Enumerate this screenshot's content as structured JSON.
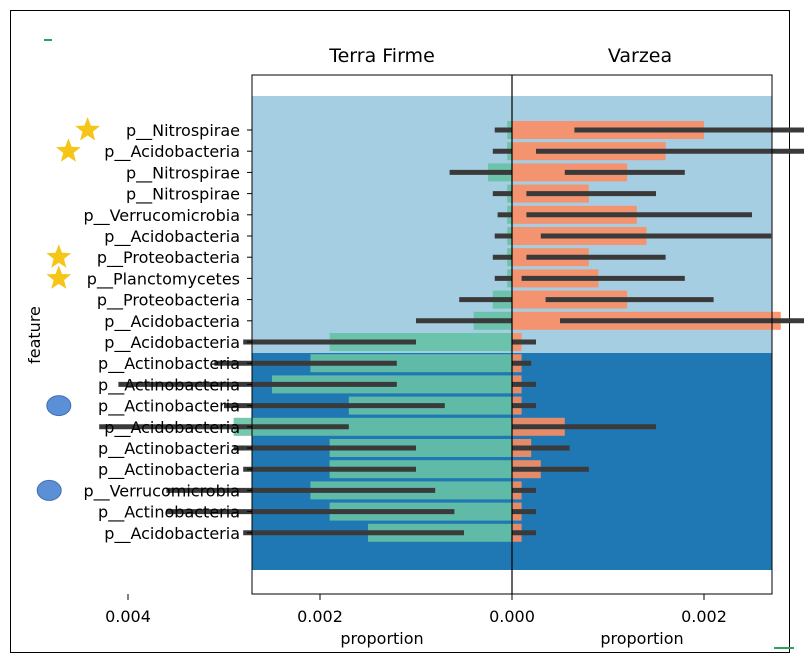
{
  "chart_data": {
    "type": "bar",
    "panels": [
      {
        "title": "Terra Firme",
        "xlabel": "proportion",
        "direction": "left"
      },
      {
        "title": "Varzea",
        "xlabel": "proportion",
        "direction": "right"
      }
    ],
    "ylabel": "feature",
    "xlim": [
      -0.0054,
      0.0054
    ],
    "xticks": [
      {
        "value": -0.004,
        "label": "0.004"
      },
      {
        "value": -0.002,
        "label": "0.002"
      },
      {
        "value": 0.0,
        "label": "0.000"
      },
      {
        "value": 0.002,
        "label": "0.002"
      },
      {
        "value": 0.004,
        "label": "0.004"
      }
    ],
    "categories": [
      "p__Nitrospirae",
      "p__Acidobacteria",
      "p__Nitrospirae",
      "p__Nitrospirae",
      "p__Verrucomicrobia",
      "p__Acidobacteria",
      "p__Proteobacteria",
      "p__Planctomycetes",
      "p__Proteobacteria",
      "p__Acidobacteria",
      "p__Acidobacteria",
      "p__Actinobacteria",
      "p__Actinobacteria",
      "p__Actinobacteria",
      "p__Acidobacteria",
      "p__Actinobacteria",
      "p__Actinobacteria",
      "p__Verrucomicrobia",
      "p__Actinobacteria",
      "p__Acidobacteria"
    ],
    "markers": [
      "star",
      "star",
      "",
      "",
      "",
      "",
      "star",
      "star",
      "",
      "",
      "",
      "",
      "",
      "circle",
      "",
      "",
      "",
      "circle",
      "",
      ""
    ],
    "groups": [
      {
        "first": 0,
        "last": 9,
        "color": "#a6cee3"
      },
      {
        "first": 10,
        "last": 19,
        "color": "#1f78b4"
      }
    ],
    "series": [
      {
        "color": "#66c2a5",
        "values": [
          5e-05,
          5e-05,
          0.00025,
          5e-05,
          5e-05,
          5e-05,
          5e-05,
          5e-05,
          0.0002,
          0.0004,
          0.0019,
          0.0021,
          0.0025,
          0.0017,
          0.0029,
          0.0019,
          0.0019,
          0.0021,
          0.0019,
          0.0015
        ],
        "err_lo": [
          0.0,
          0.0,
          0.0,
          0.0,
          0.0,
          0.0,
          0.0,
          0.0,
          0.0,
          0.0,
          0.001,
          0.0012,
          0.0012,
          0.0007,
          0.0017,
          0.001,
          0.001,
          0.0008,
          0.0006,
          0.0005
        ],
        "err_hi": [
          0.00018,
          0.0002,
          0.00065,
          0.0002,
          0.00015,
          0.00018,
          0.0002,
          0.00018,
          0.00055,
          0.001,
          0.0028,
          0.0031,
          0.0041,
          0.003,
          0.0043,
          0.0029,
          0.0028,
          0.0036,
          0.0036,
          0.0028
        ]
      },
      {
        "color": "#fc8d62",
        "values": [
          0.002,
          0.0016,
          0.0012,
          0.0008,
          0.0013,
          0.0014,
          0.0008,
          0.0009,
          0.0012,
          0.0028,
          0.0001,
          0.0001,
          0.0001,
          0.0001,
          0.00055,
          0.0002,
          0.0003,
          0.0001,
          0.0001,
          0.0001
        ],
        "err_lo": [
          0.00065,
          0.00025,
          0.00055,
          0.00015,
          0.00015,
          0.0003,
          0.00015,
          0.0001,
          0.00035,
          0.0005,
          0.0,
          0.0,
          0.0,
          0.0,
          0.0,
          0.0,
          0.0,
          0.0,
          0.0,
          0.0
        ],
        "err_hi": [
          0.0039,
          0.0034,
          0.0018,
          0.0015,
          0.0025,
          0.0027,
          0.0016,
          0.0018,
          0.0021,
          0.0052,
          0.00025,
          0.0002,
          0.00025,
          0.00025,
          0.0015,
          0.0006,
          0.0008,
          0.00025,
          0.00025,
          0.00025
        ]
      }
    ]
  }
}
